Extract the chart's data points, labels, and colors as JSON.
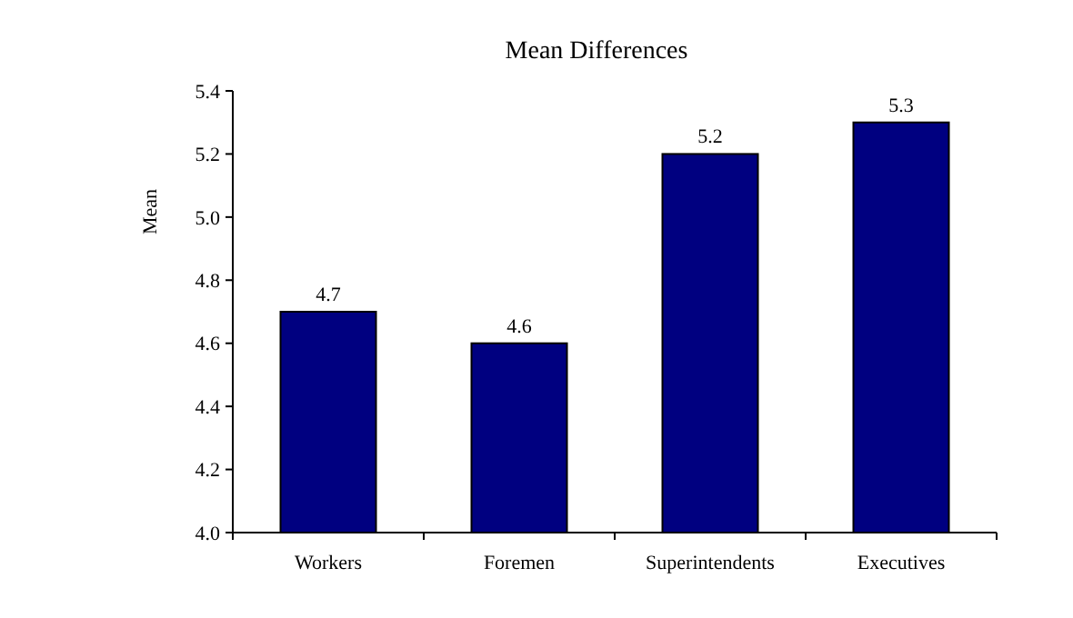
{
  "chart_data": {
    "type": "bar",
    "title": "Mean Differences",
    "ylabel": "Mean",
    "categories": [
      "Workers",
      "Foremen",
      "Superintendents",
      "Executives"
    ],
    "values": [
      4.7,
      4.6,
      5.2,
      5.3
    ],
    "color": "#000080",
    "ylim": [
      4.0,
      5.4
    ],
    "yticks": [
      {
        "value": 4.0,
        "label": "4.0"
      },
      {
        "value": 4.2,
        "label": "4.2"
      },
      {
        "value": 4.4,
        "label": "4.4"
      },
      {
        "value": 4.6,
        "label": "4.6"
      },
      {
        "value": 4.8,
        "label": "4.8"
      },
      {
        "value": 5.0,
        "label": "5.0"
      },
      {
        "value": 5.2,
        "label": "5.2"
      },
      {
        "value": 5.4,
        "label": "5.4"
      }
    ],
    "data_labels": true
  }
}
